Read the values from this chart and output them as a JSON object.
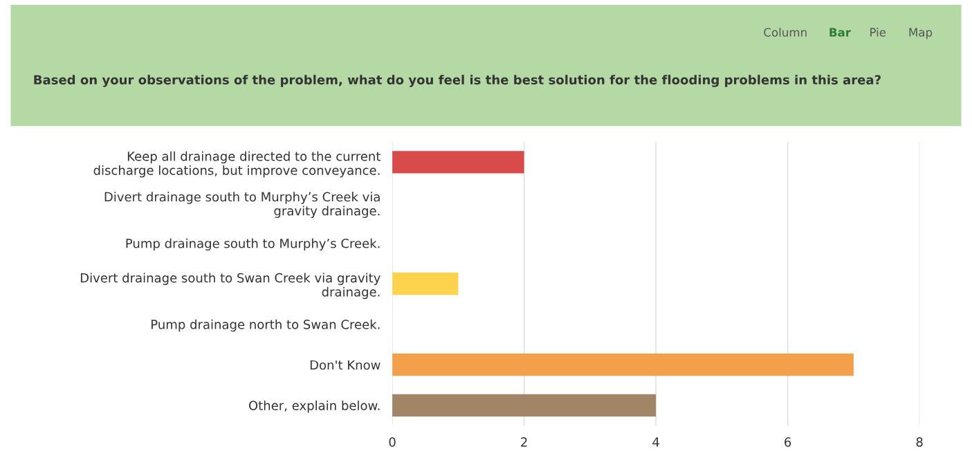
{
  "chart_data": {
    "type": "bar",
    "orientation": "horizontal",
    "title": "Based on your observations of the problem, what do you feel is the best solution for the flooding problems in this area?",
    "annotations": [
      "Column",
      "Bar",
      "Pie",
      "Map"
    ],
    "categories": [
      "Keep all drainage directed to the current\ndischarge locations, but improve conveyance.",
      "Divert drainage south to Murphy’s Creek via\ngravity drainage.",
      "Pump drainage south to Murphy’s Creek.",
      "Divert drainage south to Swan Creek via gravity\ndrainage.",
      "Pump drainage north to Swan Creek.",
      "Don't Know",
      "Other, explain below."
    ],
    "values": [
      2,
      0,
      0,
      1,
      0,
      7,
      4
    ],
    "colors": [
      "#d94b4b",
      "#cccccc",
      "#cccccc",
      "#fdd34d",
      "#cccccc",
      "#f4a04a",
      "#a28466"
    ],
    "xlim": [
      0,
      8
    ],
    "xticks": [
      0,
      2,
      4,
      6,
      8
    ],
    "grid": "x",
    "legend": false
  }
}
